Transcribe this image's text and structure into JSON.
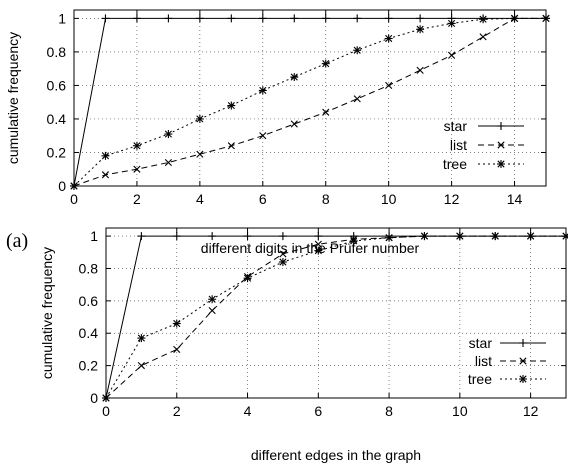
{
  "figure": {
    "panel_label": "(a)"
  },
  "chart_data": [
    {
      "type": "line",
      "title": "",
      "xlabel": "different digits in the Prüfer number",
      "ylabel": "cumulative frequency",
      "xlim": [
        0,
        15
      ],
      "ylim": [
        0,
        1.05
      ],
      "xticks": [
        0,
        2,
        4,
        6,
        8,
        10,
        12,
        14
      ],
      "yticks": [
        0,
        0.2,
        0.4,
        0.6,
        0.8,
        1
      ],
      "grid": true,
      "legend_position": "bottom-right",
      "series": [
        {
          "name": "star",
          "marker": "plus",
          "dash": "solid",
          "x": [
            0,
            1,
            2,
            3,
            4,
            5,
            6,
            7,
            8,
            9,
            10,
            11,
            12,
            13,
            14,
            15
          ],
          "y": [
            0,
            1,
            1,
            1,
            1,
            1,
            1,
            1,
            1,
            1,
            1,
            1,
            1,
            1,
            1,
            1
          ]
        },
        {
          "name": "list",
          "marker": "cross",
          "dash": "dashed",
          "x": [
            0,
            1,
            2,
            3,
            4,
            5,
            6,
            7,
            8,
            9,
            10,
            11,
            12,
            13,
            14,
            15
          ],
          "y": [
            0,
            0.067,
            0.1,
            0.14,
            0.19,
            0.24,
            0.3,
            0.37,
            0.44,
            0.52,
            0.6,
            0.69,
            0.78,
            0.89,
            1,
            1
          ]
        },
        {
          "name": "tree",
          "marker": "star",
          "dash": "dotted",
          "x": [
            0,
            1,
            2,
            3,
            4,
            5,
            6,
            7,
            8,
            9,
            10,
            11,
            12,
            13,
            14,
            15
          ],
          "y": [
            0,
            0.18,
            0.24,
            0.31,
            0.4,
            0.48,
            0.57,
            0.65,
            0.73,
            0.81,
            0.88,
            0.935,
            0.97,
            0.995,
            1,
            1
          ]
        }
      ]
    },
    {
      "type": "line",
      "title": "",
      "xlabel": "different edges in the graph",
      "ylabel": "cumulative frequency",
      "xlim": [
        0,
        13
      ],
      "ylim": [
        0,
        1.05
      ],
      "xticks": [
        0,
        2,
        4,
        6,
        8,
        10,
        12
      ],
      "yticks": [
        0,
        0.2,
        0.4,
        0.6,
        0.8,
        1
      ],
      "grid": true,
      "legend_position": "bottom-right",
      "series": [
        {
          "name": "star",
          "marker": "plus",
          "dash": "solid",
          "x": [
            0,
            1,
            2,
            3,
            4,
            5,
            6,
            7,
            8,
            9,
            10,
            11,
            12,
            13
          ],
          "y": [
            0,
            1,
            1,
            1,
            1,
            1,
            1,
            1,
            1,
            1,
            1,
            1,
            1,
            1
          ]
        },
        {
          "name": "list",
          "marker": "cross",
          "dash": "dashed",
          "x": [
            0,
            1,
            2,
            3,
            4,
            5,
            6,
            7,
            8,
            9,
            10,
            11,
            12,
            13
          ],
          "y": [
            0,
            0.2,
            0.3,
            0.54,
            0.75,
            0.89,
            0.95,
            0.98,
            0.99,
            1,
            1,
            1,
            1,
            1
          ]
        },
        {
          "name": "tree",
          "marker": "star",
          "dash": "dotted",
          "x": [
            0,
            1,
            2,
            3,
            4,
            5,
            6,
            7,
            8,
            9,
            10,
            11,
            12,
            13
          ],
          "y": [
            0,
            0.37,
            0.46,
            0.61,
            0.74,
            0.84,
            0.91,
            0.97,
            0.99,
            1,
            1,
            1,
            1,
            1
          ]
        }
      ]
    }
  ]
}
